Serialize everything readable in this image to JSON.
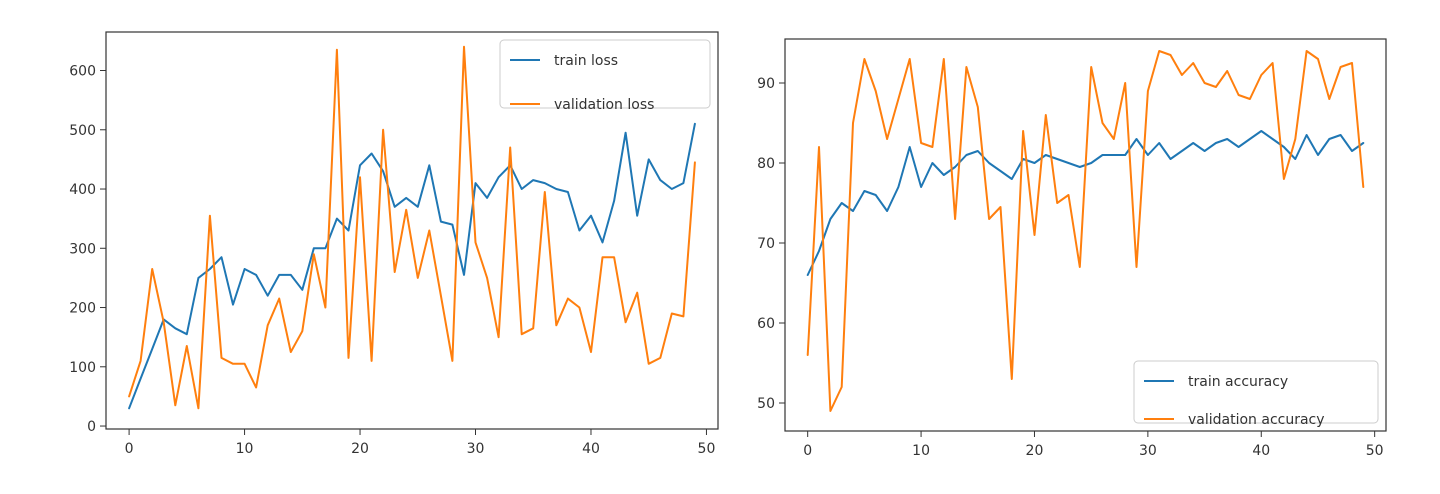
{
  "chart_data": [
    {
      "type": "line",
      "title": "",
      "xlabel": "",
      "ylabel": "",
      "xlim": [
        -2,
        51
      ],
      "ylim": [
        -5,
        665
      ],
      "xticks": [
        0,
        10,
        20,
        30,
        40,
        50
      ],
      "yticks": [
        0,
        100,
        200,
        300,
        400,
        500,
        600
      ],
      "grid": false,
      "legend_position": "top-right",
      "x": [
        0,
        1,
        2,
        3,
        4,
        5,
        6,
        7,
        8,
        9,
        10,
        11,
        12,
        13,
        14,
        15,
        16,
        17,
        18,
        19,
        20,
        21,
        22,
        23,
        24,
        25,
        26,
        27,
        28,
        29,
        30,
        31,
        32,
        33,
        34,
        35,
        36,
        37,
        38,
        39,
        40,
        41,
        42,
        43,
        44,
        45,
        46,
        47,
        48,
        49
      ],
      "series": [
        {
          "name": "train loss",
          "color": "#1f77b4",
          "values": [
            30,
            80,
            130,
            180,
            165,
            155,
            250,
            265,
            285,
            205,
            265,
            255,
            220,
            255,
            255,
            230,
            300,
            300,
            350,
            330,
            440,
            460,
            430,
            370,
            385,
            370,
            440,
            345,
            340,
            255,
            410,
            385,
            420,
            440,
            400,
            415,
            410,
            400,
            395,
            330,
            355,
            310,
            380,
            495,
            355,
            450,
            415,
            400,
            410,
            510
          ]
        },
        {
          "name": "validation loss",
          "color": "#ff7f0e",
          "values": [
            50,
            110,
            265,
            175,
            35,
            135,
            30,
            355,
            115,
            105,
            105,
            65,
            170,
            215,
            125,
            160,
            290,
            200,
            635,
            115,
            420,
            110,
            500,
            260,
            365,
            250,
            330,
            220,
            110,
            640,
            310,
            250,
            150,
            470,
            155,
            165,
            395,
            170,
            215,
            200,
            125,
            285,
            285,
            175,
            225,
            105,
            115,
            190,
            185,
            445
          ]
        }
      ]
    },
    {
      "type": "line",
      "title": "",
      "xlabel": "",
      "ylabel": "",
      "xlim": [
        -2,
        51
      ],
      "ylim": [
        46.5,
        95.5
      ],
      "xticks": [
        0,
        10,
        20,
        30,
        40,
        50
      ],
      "yticks": [
        50,
        60,
        70,
        80,
        90
      ],
      "grid": false,
      "legend_position": "bottom-right",
      "x": [
        0,
        1,
        2,
        3,
        4,
        5,
        6,
        7,
        8,
        9,
        10,
        11,
        12,
        13,
        14,
        15,
        16,
        17,
        18,
        19,
        20,
        21,
        22,
        23,
        24,
        25,
        26,
        27,
        28,
        29,
        30,
        31,
        32,
        33,
        34,
        35,
        36,
        37,
        38,
        39,
        40,
        41,
        42,
        43,
        44,
        45,
        46,
        47,
        48,
        49
      ],
      "series": [
        {
          "name": "train accuracy",
          "color": "#1f77b4",
          "values": [
            66,
            69,
            73,
            75,
            74,
            76.5,
            76,
            74,
            77,
            82,
            77,
            80,
            78.5,
            79.5,
            81,
            81.5,
            80,
            79,
            78,
            80.5,
            80,
            81,
            80.5,
            80,
            79.5,
            80,
            81,
            81,
            81,
            83,
            81,
            82.5,
            80.5,
            81.5,
            82.5,
            81.5,
            82.5,
            83,
            82,
            83,
            84,
            83,
            82,
            80.5,
            83.5,
            81,
            83,
            83.5,
            81.5,
            82.5
          ]
        },
        {
          "name": "validation accuracy",
          "color": "#ff7f0e",
          "values": [
            56,
            82,
            49,
            52,
            85,
            93,
            89,
            83,
            88,
            93,
            82.5,
            82,
            93,
            73,
            92,
            87,
            73,
            74.5,
            53,
            84,
            71,
            86,
            75,
            76,
            67,
            92,
            85,
            83,
            90,
            67,
            89,
            94,
            93.5,
            91,
            92.5,
            90,
            89.5,
            91.5,
            88.5,
            88,
            91,
            92.5,
            78,
            83,
            94,
            93,
            88,
            92,
            92.5,
            77
          ]
        }
      ]
    }
  ]
}
